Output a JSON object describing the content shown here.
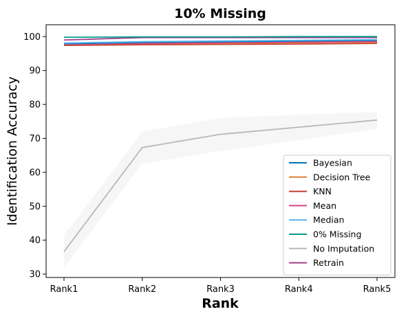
{
  "chart_data": {
    "type": "line",
    "title": "10% Missing",
    "xlabel": "Rank",
    "ylabel": "Identification Accuracy",
    "categories": [
      "Rank1",
      "Rank2",
      "Rank3",
      "Rank4",
      "Rank5"
    ],
    "ylim": [
      29,
      103.5
    ],
    "yticks": [
      30,
      40,
      50,
      60,
      70,
      80,
      90,
      100
    ],
    "legend_position": "lower-right",
    "series": [
      {
        "name": "Bayesian",
        "color": "#0072b2",
        "values": [
          97.9,
          98.3,
          98.5,
          98.7,
          98.9
        ]
      },
      {
        "name": "Decision Tree",
        "color": "#e07b39",
        "values": [
          97.6,
          97.9,
          98.0,
          98.2,
          98.4
        ]
      },
      {
        "name": "KNN",
        "color": "#c0392b",
        "values": [
          97.4,
          97.6,
          97.7,
          97.8,
          98.0
        ]
      },
      {
        "name": "Mean",
        "color": "#d6428a",
        "values": [
          97.7,
          98.0,
          98.2,
          98.4,
          98.6
        ]
      },
      {
        "name": "Median",
        "color": "#56b4e9",
        "values": [
          98.1,
          98.5,
          98.7,
          98.9,
          99.1
        ]
      },
      {
        "name": "0% Missing",
        "color": "#009e8a",
        "values": [
          99.8,
          99.9,
          99.9,
          100.0,
          100.0
        ]
      },
      {
        "name": "No Imputation",
        "color": "#b8b8b8",
        "values": [
          36.6,
          67.3,
          71.2,
          73.3,
          75.4
        ],
        "band_low": [
          32.0,
          62.5,
          66.3,
          69.5,
          72.8
        ],
        "band_high": [
          41.5,
          72.0,
          76.0,
          77.0,
          77.8
        ]
      },
      {
        "name": "Retrain",
        "color": "#a23e8c",
        "values": [
          99.0,
          99.7,
          99.7,
          99.7,
          99.7
        ]
      }
    ]
  }
}
